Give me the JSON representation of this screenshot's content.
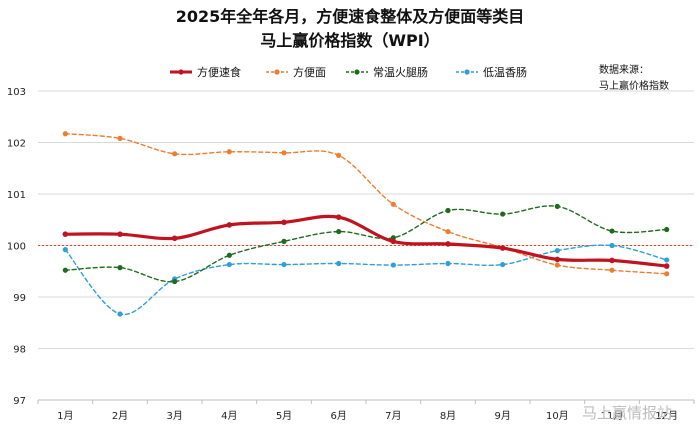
{
  "chart_data": {
    "type": "line",
    "title": "2025年全年各月，方便速食整体及方便面等类目",
    "subtitle": "马上赢价格指数（WPI）",
    "source": [
      "数据来源：",
      "马上赢价格指数"
    ],
    "watermark": "马上赢情报站",
    "categories": [
      "1月",
      "2月",
      "3月",
      "4月",
      "5月",
      "6月",
      "7月",
      "8月",
      "9月",
      "10月",
      "11月",
      "12月"
    ],
    "ylim": [
      97,
      103
    ],
    "yticks": [
      97,
      98,
      99,
      100,
      101,
      102,
      103
    ],
    "grid": true,
    "reference_line": {
      "value": 100,
      "color": "#e8412c"
    },
    "legend_position": "top",
    "series": [
      {
        "name": "方便速食",
        "color": "#c1121f",
        "style": "solid",
        "values": [
          100.22,
          100.22,
          100.14,
          100.4,
          100.45,
          100.55,
          100.08,
          100.03,
          99.95,
          99.73,
          99.71,
          99.6
        ]
      },
      {
        "name": "方便面",
        "color": "#ed7d31",
        "style": "dashed",
        "values": [
          102.17,
          102.08,
          101.78,
          101.82,
          101.8,
          101.75,
          100.8,
          100.27,
          99.96,
          99.62,
          99.52,
          99.45
        ]
      },
      {
        "name": "常温火腿肠",
        "color": "#1e6b1e",
        "style": "dashed",
        "values": [
          99.52,
          99.57,
          99.3,
          99.81,
          100.08,
          100.27,
          100.15,
          100.68,
          100.61,
          100.76,
          100.28,
          100.31
        ]
      },
      {
        "name": "低温香肠",
        "color": "#2f9fd8",
        "style": "dashed",
        "values": [
          99.92,
          98.67,
          99.35,
          99.63,
          99.63,
          99.65,
          99.62,
          99.65,
          99.63,
          99.9,
          100.0,
          99.72
        ]
      }
    ]
  }
}
